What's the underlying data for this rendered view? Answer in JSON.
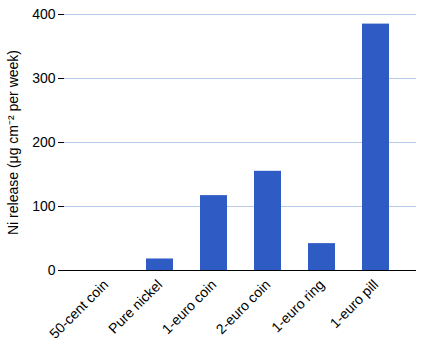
{
  "chart_data": {
    "type": "bar",
    "y_label": "Ni release (μg cm⁻² per week)",
    "categories": [
      "50-cent coin",
      "Pure nickel",
      "1-euro coin",
      "2-euro coin",
      "1-euro ring",
      "1-euro pill"
    ],
    "values": [
      0,
      18,
      117,
      155,
      42,
      385
    ],
    "color": "#2f5cc4",
    "ylim": [
      0,
      400
    ],
    "yticks": [
      0,
      100,
      200,
      300,
      400
    ],
    "grid": true
  }
}
